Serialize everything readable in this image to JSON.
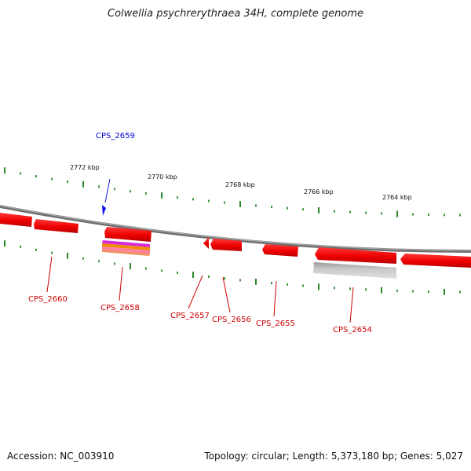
{
  "title": "Colwellia psychrerythraea 34H, complete genome",
  "footer": {
    "accession": "Accession: NC_003910",
    "summary": "Topology: circular; Length: 5,373,180 bp; Genes: 5,027"
  },
  "colors": {
    "forward_gene": "#1010ee",
    "reverse_gene": "#ee0000",
    "label_reverse": "#cc0000",
    "label_forward": "#0000cc",
    "backbone": "#808080",
    "ticks": "#2a8a2a",
    "feature_gray": "#b8b8b8",
    "feature_stripe_1": "#d82ad8",
    "feature_stripe_2": "#f08c00",
    "feature_stripe_3": "#ff80a0"
  },
  "scale_labels": [
    "2772 kbp",
    "2770 kbp",
    "2768 kbp",
    "2766 kbp",
    "2764 kbp"
  ],
  "genes": [
    {
      "name": "CPS_2659",
      "strand": "forward"
    },
    {
      "name": "CPS_2660",
      "strand": "reverse"
    },
    {
      "name": "CPS_2658",
      "strand": "reverse"
    },
    {
      "name": "CPS_2657",
      "strand": "reverse"
    },
    {
      "name": "CPS_2656",
      "strand": "reverse"
    },
    {
      "name": "CPS_2655",
      "strand": "reverse"
    },
    {
      "name": "CPS_2654",
      "strand": "reverse"
    }
  ]
}
